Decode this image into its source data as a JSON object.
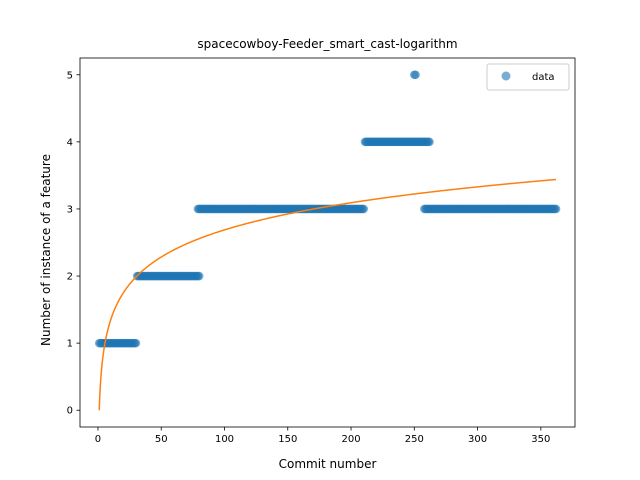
{
  "chart_data": {
    "type": "scatter",
    "title": "spacecowboy-Feeder_smart_cast-logarithm",
    "xlabel": "Commit number",
    "ylabel": "Number of instance of a feature",
    "xlim": [
      -14.2,
      377
    ],
    "ylim": [
      -0.25,
      5.25
    ],
    "xticks": [
      0,
      50,
      100,
      150,
      200,
      250,
      300,
      350
    ],
    "yticks": [
      0,
      1,
      2,
      3,
      4,
      5
    ],
    "grid": false,
    "legend": {
      "placement": "top-right",
      "entries": [
        "data"
      ]
    },
    "colors": {
      "data": "#1f77b4",
      "fit": "#ff7f0e"
    },
    "series": [
      {
        "name": "data",
        "kind": "scatter",
        "segments": [
          {
            "x_start": 1,
            "x_end": 30,
            "y": 1
          },
          {
            "x_start": 31,
            "x_end": 80,
            "y": 2
          },
          {
            "x_start": 79,
            "x_end": 210,
            "y": 3
          },
          {
            "x_start": 211,
            "x_end": 250,
            "y": 4
          },
          {
            "x_start": 251,
            "x_end": 262,
            "y": 4
          },
          {
            "x_start": 250,
            "x_end": 251,
            "y": 5
          },
          {
            "x_start": 258,
            "x_end": 362,
            "y": 3
          }
        ]
      },
      {
        "kind": "line",
        "fit": {
          "model": "logarithmic",
          "a": 0.0,
          "b": 0.5837,
          "x_start": 1,
          "x_end": 362
        }
      }
    ]
  }
}
